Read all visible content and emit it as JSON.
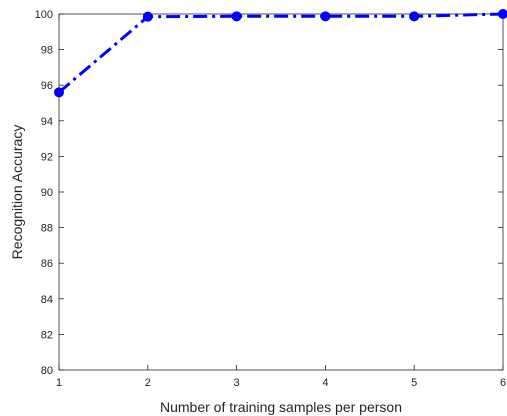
{
  "chart_data": {
    "type": "line",
    "title": "",
    "xlabel": "Number of training samples per person",
    "ylabel": "Recognition Accuracy",
    "xlim": [
      1,
      6
    ],
    "ylim": [
      80,
      100
    ],
    "xticks": [
      1,
      2,
      3,
      4,
      5,
      6
    ],
    "yticks": [
      80,
      82,
      84,
      86,
      88,
      90,
      92,
      94,
      96,
      98,
      100
    ],
    "grid": false,
    "legend": "none",
    "x": [
      1,
      2,
      3,
      4,
      5,
      6
    ],
    "series": [
      {
        "values": [
          95.6,
          99.85,
          99.87,
          99.87,
          99.87,
          100
        ],
        "color": "#0000ff",
        "line_style": "dash-dot",
        "marker": "circle"
      }
    ]
  }
}
